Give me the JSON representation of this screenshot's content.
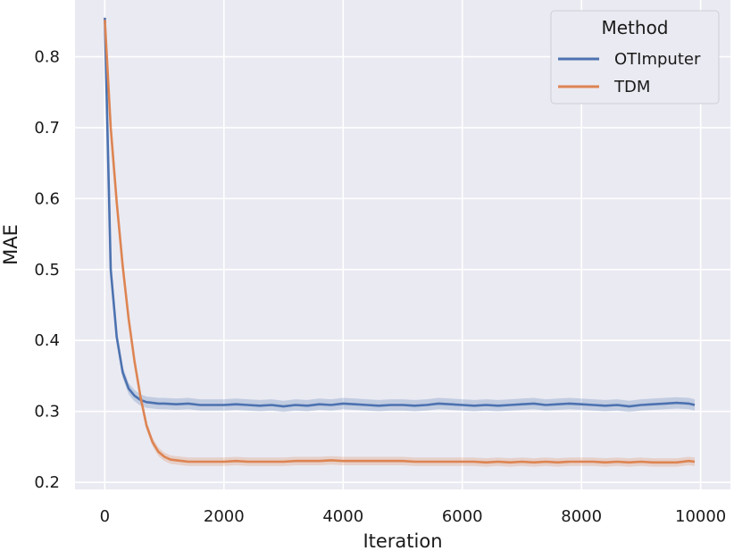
{
  "chart_data": {
    "type": "line",
    "title": "",
    "xlabel": "Iteration",
    "ylabel": "MAE",
    "xlim": [
      -500,
      10500
    ],
    "ylim": [
      0.19,
      0.88
    ],
    "xticks": [
      0,
      2000,
      4000,
      6000,
      8000,
      10000
    ],
    "xtick_labels": [
      "0",
      "2000",
      "4000",
      "6000",
      "8000",
      "10000"
    ],
    "yticks": [
      0.2,
      0.3,
      0.4,
      0.5,
      0.6,
      0.7,
      0.8
    ],
    "ytick_labels": [
      "0.2",
      "0.3",
      "0.4",
      "0.5",
      "0.6",
      "0.7",
      "0.8"
    ],
    "grid": true,
    "background": "#eaeaf2",
    "legend": {
      "title": "Method",
      "position": "top-right"
    },
    "series": [
      {
        "name": "OTImputer",
        "color": "#4c72b0",
        "x": [
          0,
          100,
          200,
          300,
          400,
          500,
          600,
          700,
          800,
          900,
          1000,
          1200,
          1400,
          1600,
          1800,
          2000,
          2200,
          2400,
          2600,
          2800,
          3000,
          3200,
          3400,
          3600,
          3800,
          4000,
          4200,
          4400,
          4600,
          4800,
          5000,
          5200,
          5400,
          5600,
          5800,
          6000,
          6200,
          6400,
          6600,
          6800,
          7000,
          7200,
          7400,
          7600,
          7800,
          8000,
          8200,
          8400,
          8600,
          8800,
          9000,
          9200,
          9400,
          9600,
          9800,
          9900
        ],
        "y": [
          0.855,
          0.5,
          0.405,
          0.355,
          0.332,
          0.322,
          0.316,
          0.313,
          0.312,
          0.311,
          0.311,
          0.31,
          0.311,
          0.309,
          0.309,
          0.309,
          0.31,
          0.309,
          0.308,
          0.309,
          0.307,
          0.309,
          0.308,
          0.31,
          0.309,
          0.311,
          0.31,
          0.309,
          0.308,
          0.309,
          0.309,
          0.308,
          0.309,
          0.311,
          0.31,
          0.309,
          0.308,
          0.309,
          0.308,
          0.309,
          0.31,
          0.311,
          0.309,
          0.31,
          0.311,
          0.31,
          0.309,
          0.308,
          0.309,
          0.307,
          0.309,
          0.31,
          0.311,
          0.312,
          0.311,
          0.309
        ],
        "band": 0.008
      },
      {
        "name": "TDM",
        "color": "#dd8452",
        "x": [
          0,
          100,
          200,
          300,
          400,
          500,
          600,
          700,
          800,
          900,
          1000,
          1100,
          1200,
          1300,
          1400,
          1600,
          1800,
          2000,
          2200,
          2400,
          2600,
          2800,
          3000,
          3200,
          3400,
          3600,
          3800,
          4000,
          4200,
          4400,
          4600,
          4800,
          5000,
          5200,
          5400,
          5600,
          5800,
          6000,
          6200,
          6400,
          6600,
          6800,
          7000,
          7200,
          7400,
          7600,
          7800,
          8000,
          8200,
          8400,
          8600,
          8800,
          9000,
          9200,
          9400,
          9600,
          9800,
          9900
        ],
        "y": [
          0.852,
          0.7,
          0.595,
          0.505,
          0.43,
          0.37,
          0.32,
          0.28,
          0.257,
          0.243,
          0.236,
          0.232,
          0.231,
          0.23,
          0.229,
          0.229,
          0.229,
          0.229,
          0.23,
          0.229,
          0.229,
          0.229,
          0.229,
          0.23,
          0.23,
          0.23,
          0.231,
          0.23,
          0.23,
          0.23,
          0.23,
          0.23,
          0.23,
          0.229,
          0.229,
          0.229,
          0.229,
          0.229,
          0.229,
          0.228,
          0.229,
          0.228,
          0.229,
          0.228,
          0.229,
          0.228,
          0.229,
          0.229,
          0.229,
          0.228,
          0.229,
          0.228,
          0.229,
          0.228,
          0.228,
          0.228,
          0.23,
          0.229
        ],
        "band": 0.006
      }
    ]
  }
}
